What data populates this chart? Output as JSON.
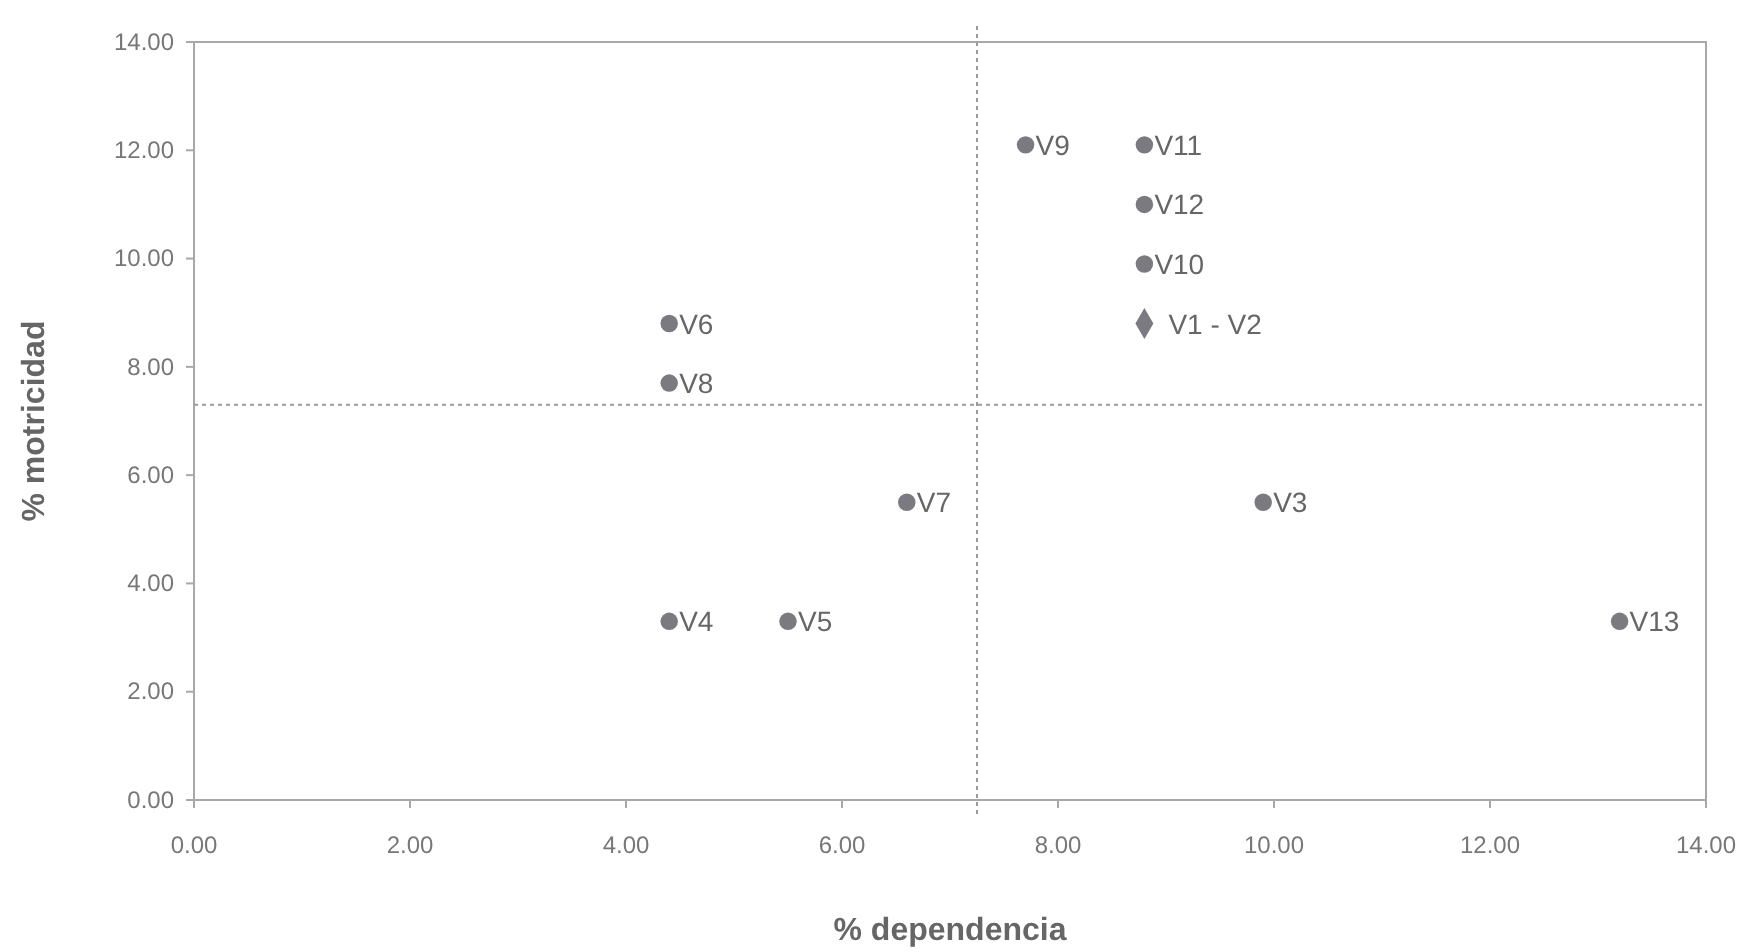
{
  "chart_data": {
    "type": "scatter",
    "xlabel": "% dependencia",
    "ylabel": "% motricidad",
    "xlim": [
      0,
      14
    ],
    "ylim": [
      0,
      14
    ],
    "xticks": [
      {
        "value": 0,
        "label": "0.00"
      },
      {
        "value": 2,
        "label": "2.00"
      },
      {
        "value": 4,
        "label": "4.00"
      },
      {
        "value": 6,
        "label": "6.00"
      },
      {
        "value": 8,
        "label": "8.00"
      },
      {
        "value": 10,
        "label": "10.00"
      },
      {
        "value": 12,
        "label": "12.00"
      },
      {
        "value": 14,
        "label": "14.00"
      }
    ],
    "yticks": [
      {
        "value": 0,
        "label": "0.00"
      },
      {
        "value": 2,
        "label": "2.00"
      },
      {
        "value": 4,
        "label": "4.00"
      },
      {
        "value": 6,
        "label": "6.00"
      },
      {
        "value": 8,
        "label": "8.00"
      },
      {
        "value": 10,
        "label": "10.00"
      },
      {
        "value": 12,
        "label": "12.00"
      },
      {
        "value": 14,
        "label": "14.00"
      }
    ],
    "grid": false,
    "series": [
      {
        "color": "#7a7a80",
        "marker": "circle",
        "x": [
          4.4,
          4.4,
          4.4,
          5.5,
          7.7,
          8.8,
          8.8,
          8.8,
          6.6,
          9.9,
          13.2
        ],
        "values": [
          8.8,
          7.7,
          3.3,
          3.3,
          12.1,
          12.1,
          11.0,
          9.9,
          5.5,
          5.5,
          3.3
        ]
      },
      {
        "color": "#7a7a80",
        "marker": "diamond",
        "x": [
          8.8
        ],
        "values": [
          8.8
        ]
      }
    ],
    "annotations": [
      {
        "text": "V6",
        "x": 4.4,
        "y": 8.8
      },
      {
        "text": "V8",
        "x": 4.4,
        "y": 7.7
      },
      {
        "text": "V4",
        "x": 4.4,
        "y": 3.3
      },
      {
        "text": "V5",
        "x": 5.5,
        "y": 3.3
      },
      {
        "text": "V9",
        "x": 7.7,
        "y": 12.1
      },
      {
        "text": "V11",
        "x": 8.8,
        "y": 12.1
      },
      {
        "text": "V12",
        "x": 8.8,
        "y": 11.0
      },
      {
        "text": "V10",
        "x": 8.8,
        "y": 9.9
      },
      {
        "text": "V1 - V2",
        "x": 8.8,
        "y": 8.8
      },
      {
        "text": "V7",
        "x": 6.6,
        "y": 5.5
      },
      {
        "text": "V3",
        "x": 9.9,
        "y": 5.5
      },
      {
        "text": "V13",
        "x": 13.2,
        "y": 3.3
      }
    ],
    "ref_lines": [
      {
        "axis": "x",
        "value": 7.25,
        "color": "#9a9aa0",
        "line_style": "dotted"
      },
      {
        "axis": "y",
        "value": 7.3,
        "color": "#9a9aa0",
        "line_style": "dotted"
      }
    ]
  }
}
